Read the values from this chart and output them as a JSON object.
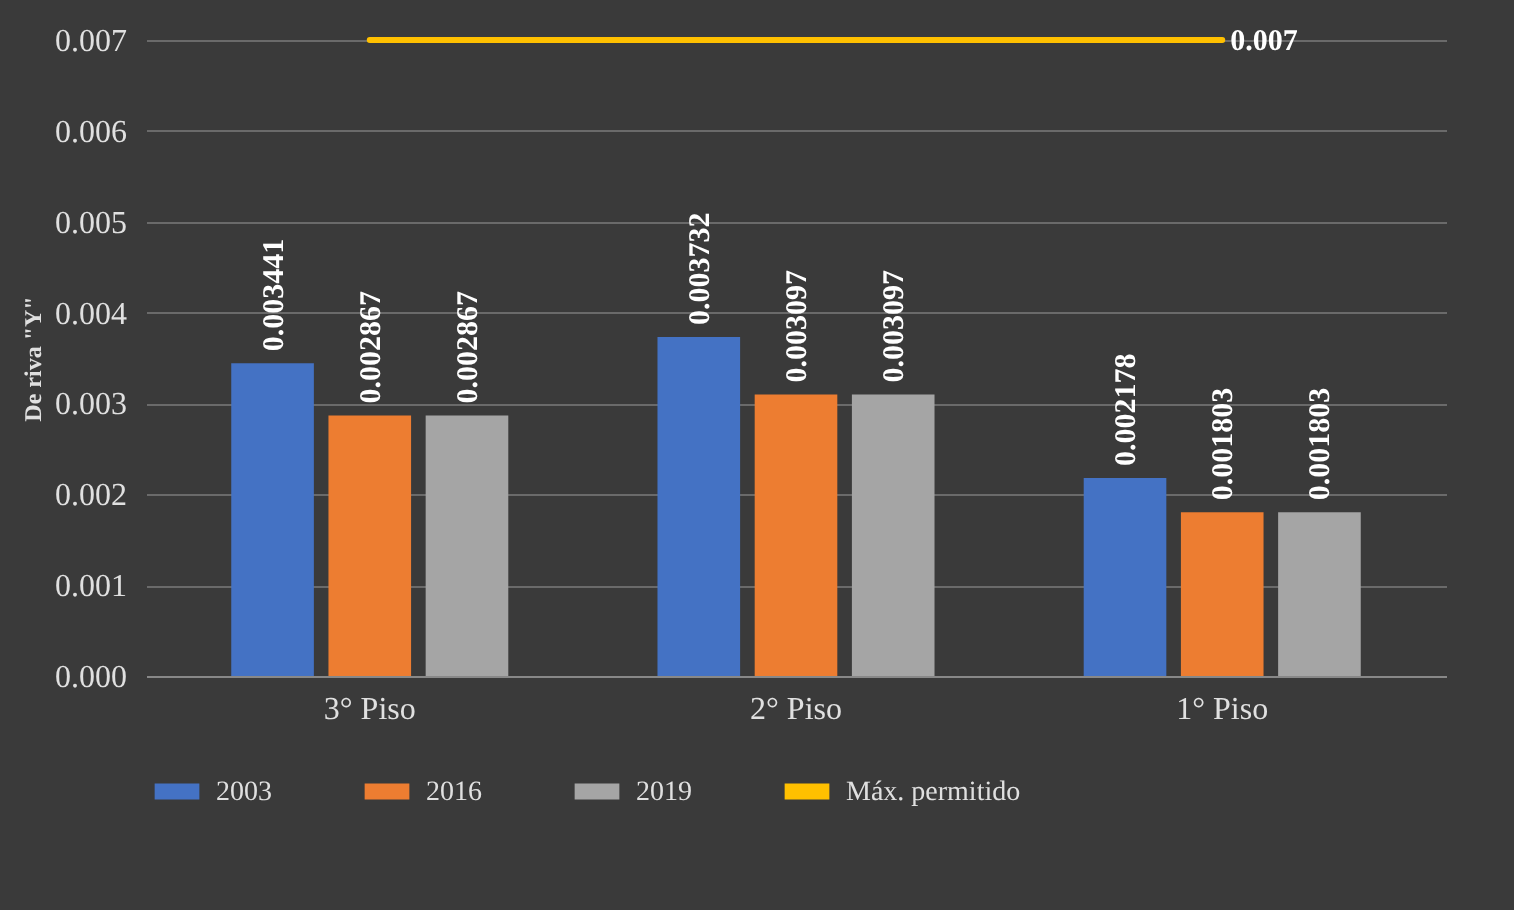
{
  "chart_data": {
    "type": "bar",
    "ylabel": "De riva \"Y\"",
    "categories": [
      "3° Piso",
      "2° Piso",
      "1° Piso"
    ],
    "series": [
      {
        "name": "2003",
        "color": "#4472c4",
        "values": [
          0.003441,
          0.003732,
          0.002178
        ]
      },
      {
        "name": "2016",
        "color": "#ed7d31",
        "values": [
          0.002867,
          0.003097,
          0.001803
        ]
      },
      {
        "name": "2019",
        "color": "#a5a5a5",
        "values": [
          0.002867,
          0.003097,
          0.001803
        ]
      },
      {
        "name": "Máx. permitido",
        "type": "line",
        "color": "#ffc000",
        "values": [
          0.007,
          0.007,
          0.007
        ],
        "value_labels": [
          null,
          null,
          "0.007"
        ]
      }
    ],
    "data_labels": true,
    "ylim": [
      0,
      0.007
    ],
    "yticks": [
      {
        "value": 0,
        "label": "0.000"
      },
      {
        "value": 0.001,
        "label": "0.001"
      },
      {
        "value": 0.002,
        "label": "0.002"
      },
      {
        "value": 0.003,
        "label": "0.003"
      },
      {
        "value": 0.004,
        "label": "0.004"
      },
      {
        "value": 0.005,
        "label": "0.005"
      },
      {
        "value": 0.006,
        "label": "0.006"
      },
      {
        "value": 0.007,
        "label": "0.007"
      }
    ],
    "grid": "y",
    "legend": "bottom"
  }
}
